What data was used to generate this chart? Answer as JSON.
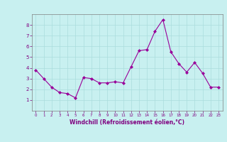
{
  "x": [
    0,
    1,
    2,
    3,
    4,
    5,
    6,
    7,
    8,
    9,
    10,
    11,
    12,
    13,
    14,
    15,
    16,
    17,
    18,
    19,
    20,
    21,
    22,
    23
  ],
  "y": [
    3.8,
    3.0,
    2.2,
    1.7,
    1.6,
    1.2,
    3.1,
    3.0,
    2.6,
    2.6,
    2.7,
    2.6,
    4.1,
    5.6,
    5.7,
    7.4,
    8.5,
    5.5,
    4.4,
    3.6,
    4.5,
    3.5,
    2.2,
    2.2
  ],
  "line_color": "#990099",
  "marker": "D",
  "marker_size": 2,
  "background_color": "#c8f0f0",
  "grid_color": "#aadddd",
  "xlabel": "Windchill (Refroidissement éolien,°C)",
  "xlabel_color": "#800080",
  "tick_color": "#800080",
  "spine_color": "#808080",
  "ylim": [
    0,
    9
  ],
  "xlim": [
    -0.5,
    23.5
  ],
  "yticks": [
    1,
    2,
    3,
    4,
    5,
    6,
    7,
    8
  ],
  "xticks": [
    0,
    1,
    2,
    3,
    4,
    5,
    6,
    7,
    8,
    9,
    10,
    11,
    12,
    13,
    14,
    15,
    16,
    17,
    18,
    19,
    20,
    21,
    22,
    23
  ]
}
